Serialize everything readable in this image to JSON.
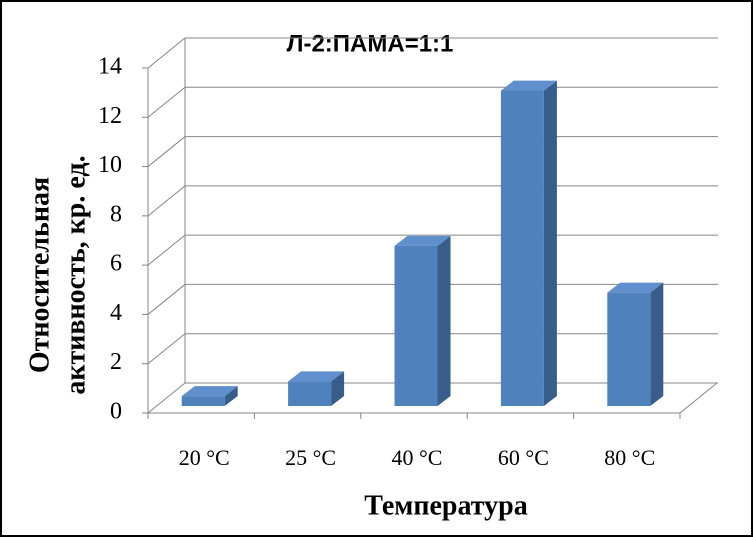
{
  "chart_data": {
    "type": "bar3d",
    "title": "Л-2:ПАМА=1:1",
    "y_label": [
      "Относительная",
      "активность, кр. ед."
    ],
    "x_label": "Температура",
    "categories": [
      "20 °C",
      "25 °C",
      "40 °C",
      "60 °C",
      "80 °C"
    ],
    "values": [
      0.4,
      1.0,
      6.5,
      12.8,
      4.6
    ],
    "color": "#4f81bd",
    "ylim": [
      0,
      14
    ],
    "yticks": [
      0,
      2,
      4,
      6,
      8,
      10,
      12,
      14
    ],
    "grid": true
  }
}
